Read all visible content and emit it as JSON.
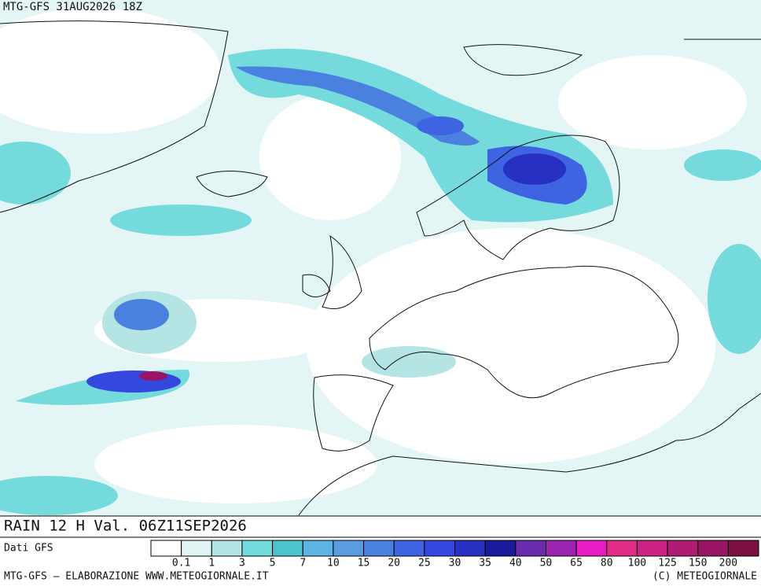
{
  "header": {
    "title": "MTG-GFS 31AUG2026 18Z"
  },
  "caption": "RAIN 12 H Val. 06Z11SEP2026",
  "legend": {
    "title": "Dati GFS",
    "colors": [
      "#ffffff",
      "#e2f4f4",
      "#b4e4e4",
      "#74dadc",
      "#4cc4cc",
      "#5cb4e4",
      "#5a9ce2",
      "#4a80e0",
      "#3e64e2",
      "#3448e0",
      "#2830c4",
      "#1a1a9c",
      "#6a2cac",
      "#9a24b0",
      "#e81cc4",
      "#e02c84",
      "#cc2484",
      "#b01c74",
      "#9a1464",
      "#7a1040"
    ],
    "labels": [
      "0.1",
      "1",
      "3",
      "5",
      "7",
      "10",
      "15",
      "20",
      "25",
      "30",
      "35",
      "40",
      "50",
      "65",
      "80",
      "100",
      "125",
      "150",
      "200"
    ]
  },
  "footer": {
    "left": "MTG-GFS — ELABORAZIONE WWW.METEOGIORNALE.IT",
    "right": "(C) METEOGIORNALE"
  }
}
